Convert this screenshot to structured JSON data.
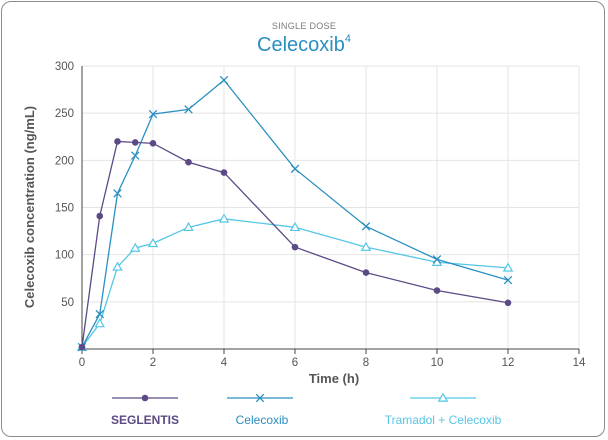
{
  "chart_data": {
    "type": "line",
    "subtitle": "SINGLE DOSE",
    "title": "Celecoxib",
    "title_superscript": "4",
    "xlabel": "Time (h)",
    "ylabel": "Celecoxib concentration (ng/mL)",
    "xlim": [
      0,
      14
    ],
    "ylim": [
      0,
      300
    ],
    "x_ticks": [
      0,
      2,
      4,
      6,
      8,
      10,
      12,
      14
    ],
    "y_ticks": [
      50,
      100,
      150,
      200,
      250,
      300
    ],
    "grid": true,
    "legend_position": "bottom",
    "series": [
      {
        "name": "SEGLENTIS",
        "color": "#5c4a86",
        "marker": "circle",
        "x": [
          0,
          0.5,
          1,
          1.5,
          2,
          3,
          4,
          6,
          8,
          10,
          12
        ],
        "y": [
          2,
          141,
          220,
          219,
          218,
          198,
          187,
          108,
          81,
          62,
          49
        ]
      },
      {
        "name": "Celecoxib",
        "color": "#2a8fc1",
        "marker": "x",
        "x": [
          0,
          0.5,
          1,
          1.5,
          2,
          3,
          4,
          6,
          8,
          10,
          12
        ],
        "y": [
          2,
          37,
          165,
          205,
          249,
          254,
          285,
          191,
          130,
          95,
          73
        ]
      },
      {
        "name": "Tramadol + Celecoxib",
        "color": "#55c6e6",
        "marker": "triangle",
        "x": [
          0,
          0.5,
          1,
          1.5,
          2,
          3,
          4,
          6,
          8,
          10,
          12
        ],
        "y": [
          2,
          27,
          87,
          107,
          112,
          129,
          138,
          129,
          108,
          92,
          86
        ]
      }
    ]
  }
}
